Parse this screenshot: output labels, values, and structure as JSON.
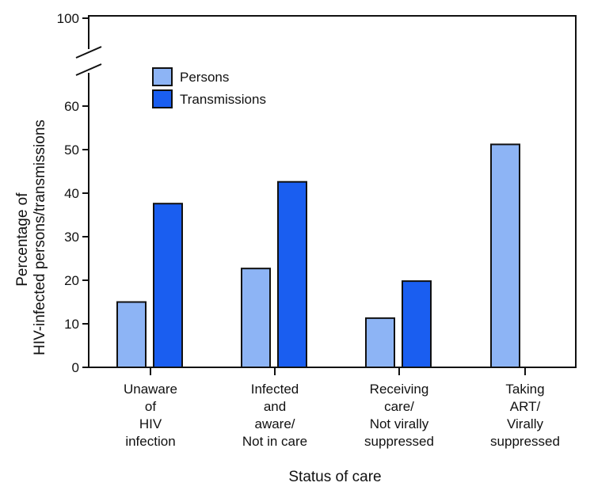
{
  "chart_data": {
    "type": "bar",
    "title": "",
    "xlabel": "Status of care",
    "ylabel_lines": [
      "Percentage of",
      "HIV-infected persons/transmissions"
    ],
    "ylim": [
      0,
      100
    ],
    "axis_break": true,
    "yticks": [
      0,
      10,
      20,
      30,
      40,
      50,
      60,
      100
    ],
    "legend_position": "top-left",
    "categories": [
      {
        "lines": [
          "Unaware",
          "of",
          "HIV",
          "infection"
        ]
      },
      {
        "lines": [
          "Infected",
          "and",
          "aware/",
          "Not in care"
        ]
      },
      {
        "lines": [
          "Receiving",
          "care/",
          "Not virally",
          "suppressed"
        ]
      },
      {
        "lines": [
          "Taking",
          "ART/",
          "Virally",
          "suppressed"
        ]
      }
    ],
    "series": [
      {
        "name": "Persons",
        "color": "#8db4f5",
        "values": [
          15.0,
          22.7,
          11.3,
          51.2
        ]
      },
      {
        "name": "Transmissions",
        "color": "#1a5ef0",
        "values": [
          37.6,
          42.6,
          19.8,
          0
        ]
      }
    ]
  }
}
